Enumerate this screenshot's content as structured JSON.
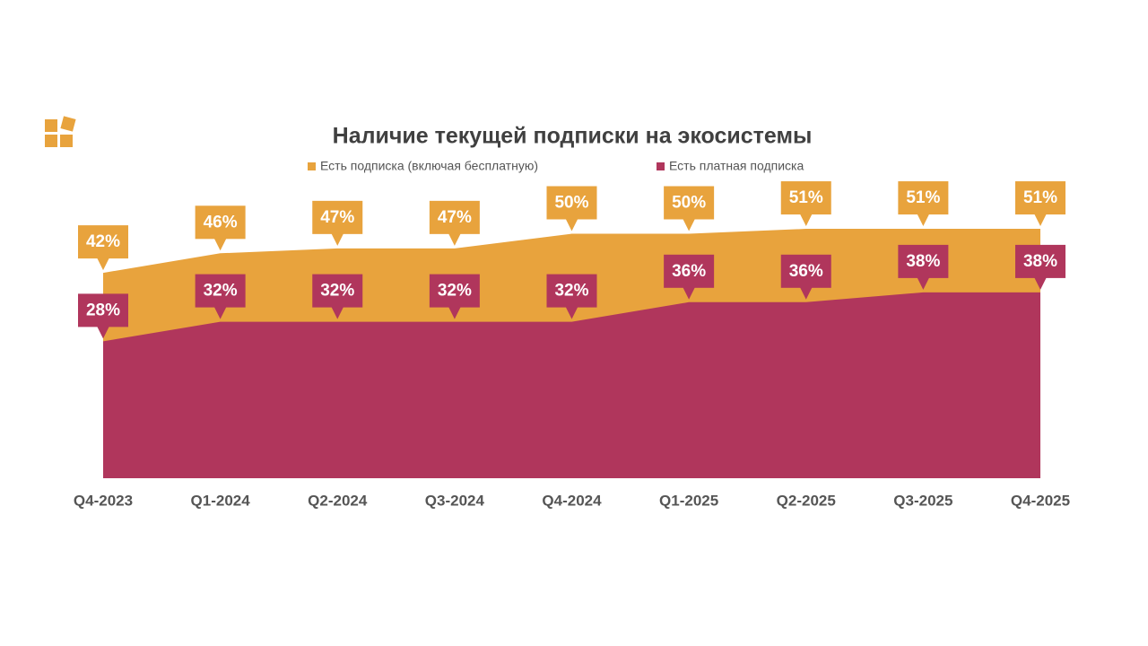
{
  "chart_data": {
    "type": "area",
    "title": "Наличие текущей подписки на экосистемы",
    "categories": [
      "Q4-2023",
      "Q1-2024",
      "Q2-2024",
      "Q3-2024",
      "Q4-2024",
      "Q1-2025",
      "Q2-2025",
      "Q3-2025",
      "Q4-2025"
    ],
    "series": [
      {
        "name": "Есть подписка (включая бесплатную)",
        "color": "#E8A33D",
        "values": [
          42,
          46,
          47,
          47,
          50,
          50,
          51,
          51,
          51
        ],
        "value_labels": [
          "42%",
          "46%",
          "47%",
          "47%",
          "50%",
          "50%",
          "51%",
          "51%",
          "51%"
        ]
      },
      {
        "name": "Есть платная подписка",
        "color": "#B0365C",
        "values": [
          28,
          32,
          32,
          32,
          32,
          36,
          36,
          38,
          38
        ],
        "value_labels": [
          "28%",
          "32%",
          "32%",
          "32%",
          "32%",
          "36%",
          "36%",
          "38%",
          "38%"
        ]
      }
    ]
  }
}
